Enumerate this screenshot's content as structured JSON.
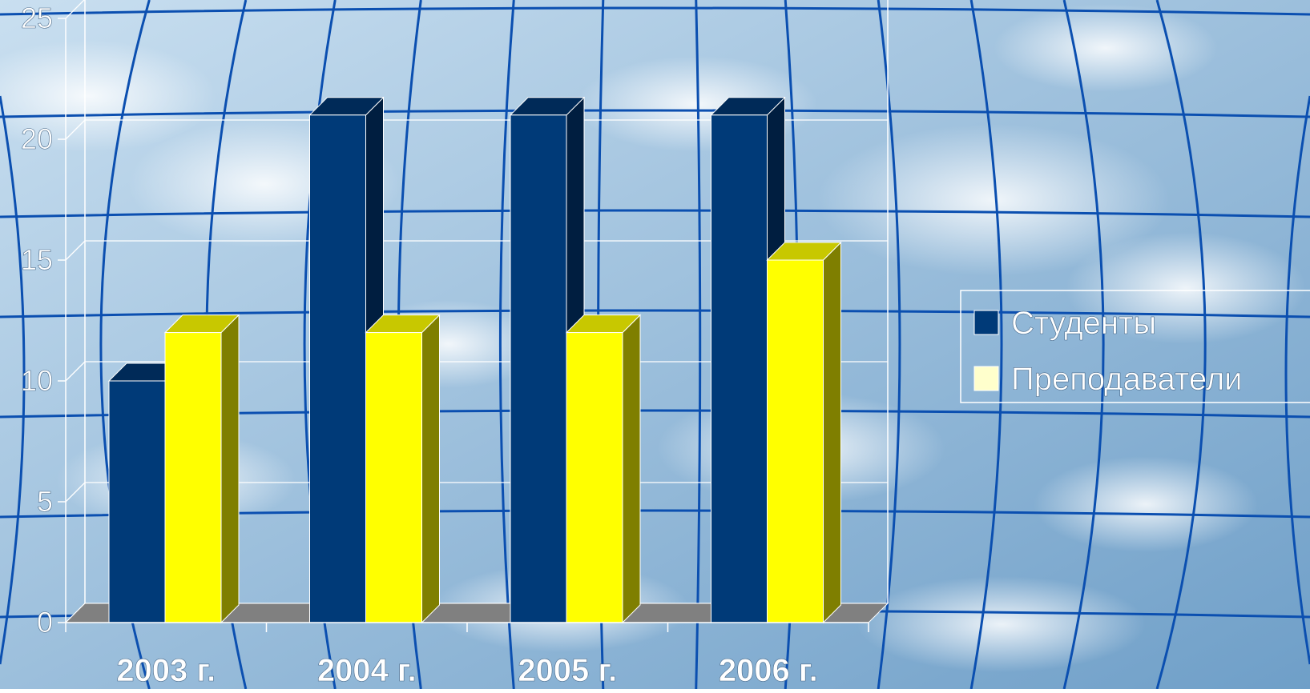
{
  "colors": {
    "sky_light": "#c9dff0",
    "sky_dark": "#6f9fc8",
    "grid_line": "#0b4fb0",
    "series_1_front": "#003a78",
    "series_1_side": "#001e40",
    "series_1_top": "#002a58",
    "series_2_front": "#ffff00",
    "series_2_side": "#7f7f00",
    "series_2_top": "#c8c800",
    "floor": "#808080",
    "axis_text": "#ffffff"
  },
  "chart_data": {
    "type": "bar",
    "title": "",
    "xlabel": "",
    "ylabel": "",
    "categories": [
      "2003 г.",
      "2004 г.",
      "2005 г.",
      "2006 г."
    ],
    "series": [
      {
        "name": "Студенты",
        "values": [
          10,
          21,
          21,
          21
        ]
      },
      {
        "name": "Преподаватели",
        "values": [
          12,
          12,
          12,
          15
        ]
      }
    ],
    "ylim": [
      0,
      25
    ],
    "yticks": [
      "0",
      "5",
      "10",
      "15",
      "20",
      "25"
    ],
    "grid": true,
    "legend_position": "right",
    "style": "3d-clustered-columns"
  }
}
